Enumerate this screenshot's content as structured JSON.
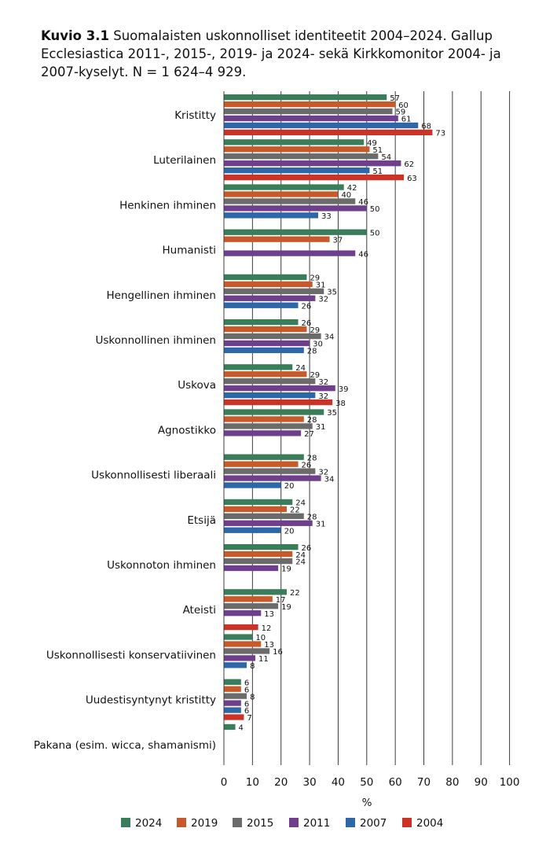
{
  "title": {
    "prefix": "Kuvio 3.1",
    "text": "Suomalaisten uskonnolliset identiteetit 2004–2024. Gallup Ecclesiastica 2011-, 2015-, 2019- ja 2024- sekä Kirkkomonitor 2004- ja 2007-kyselyt. N = 1 624–4 929."
  },
  "chart_data": {
    "type": "bar",
    "orientation": "horizontal",
    "xlabel": "%",
    "xlim": [
      0,
      100
    ],
    "xticks": [
      0,
      10,
      20,
      30,
      40,
      50,
      60,
      70,
      80,
      90,
      100
    ],
    "legend_position": "bottom",
    "categories": [
      "Kristitty",
      "Luterilainen",
      "Henkinen ihminen",
      "Humanisti",
      "Hengellinen ihminen",
      "Uskonnollinen ihminen",
      "Uskova",
      "Agnostikko",
      "Uskonnollisesti liberaali",
      "Etsijä",
      "Uskonnoton ihminen",
      "Ateisti",
      "Uskonnollisesti konservatiivinen",
      "Uudestisyntynyt kristitty",
      "Pakana (esim. wicca, shamanismi)"
    ],
    "series": [
      {
        "name": "2024",
        "color": "#3a7d5a",
        "values": [
          57,
          49,
          42,
          50,
          29,
          26,
          24,
          35,
          28,
          24,
          26,
          22,
          10,
          6,
          4
        ]
      },
      {
        "name": "2019",
        "color": "#c8592a",
        "values": [
          60,
          51,
          40,
          37,
          31,
          29,
          29,
          28,
          26,
          22,
          24,
          17,
          13,
          6,
          null
        ]
      },
      {
        "name": "2015",
        "color": "#6b6b6b",
        "values": [
          59,
          54,
          46,
          null,
          35,
          34,
          32,
          31,
          32,
          28,
          24,
          19,
          16,
          8,
          null
        ]
      },
      {
        "name": "2011",
        "color": "#6f3f8e",
        "values": [
          61,
          62,
          50,
          46,
          32,
          30,
          39,
          27,
          34,
          31,
          19,
          13,
          11,
          6,
          null
        ]
      },
      {
        "name": "2007",
        "color": "#2e67a7",
        "values": [
          68,
          51,
          33,
          null,
          26,
          28,
          32,
          null,
          20,
          20,
          null,
          null,
          8,
          6,
          null
        ]
      },
      {
        "name": "2004",
        "color": "#cc3327",
        "values": [
          73,
          63,
          null,
          null,
          null,
          null,
          38,
          null,
          null,
          null,
          null,
          12,
          null,
          7,
          null
        ]
      }
    ]
  }
}
